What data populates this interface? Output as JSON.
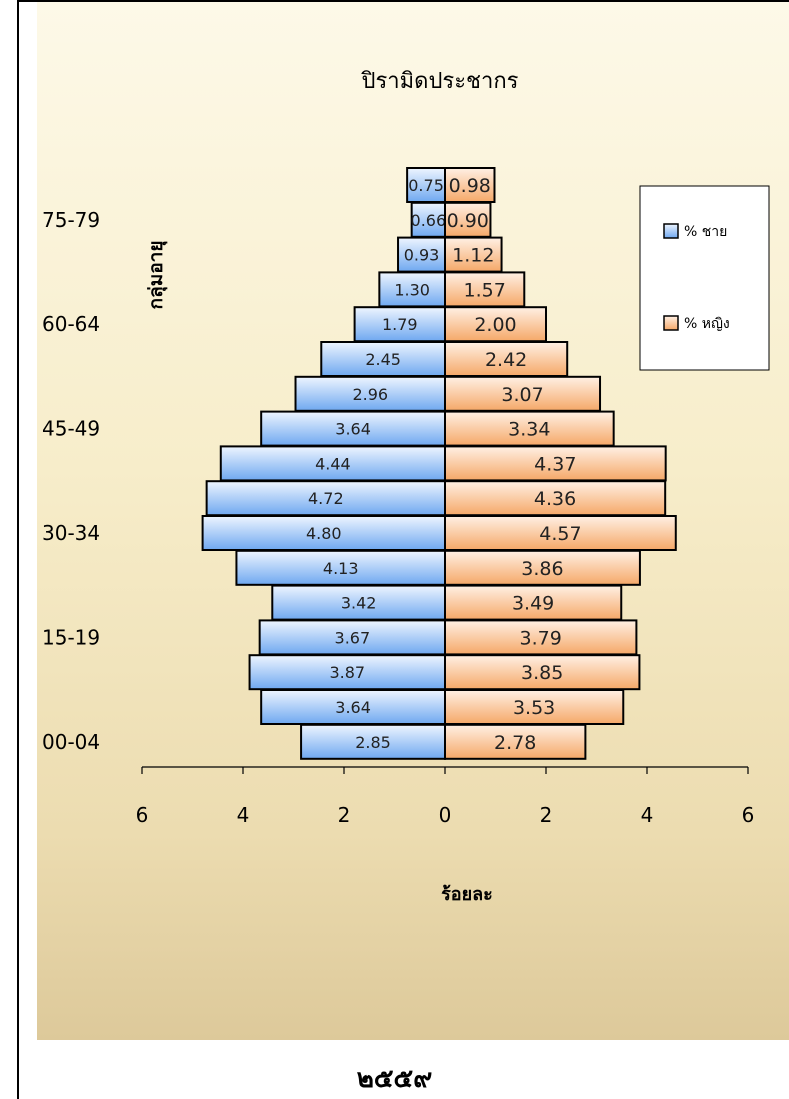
{
  "chart_data": {
    "type": "bar",
    "orientation": "horizontal",
    "title": "ปิรามิดประชากร",
    "xlabel": "ร้อยละ",
    "ylabel": "กลุ่มอายุ",
    "xlim": [
      -6,
      6
    ],
    "x_ticks": [
      "6",
      "4",
      "2",
      "0",
      "2",
      "4",
      "6"
    ],
    "y_tick_labels": [
      "00-04",
      "15-19",
      "30-34",
      "45-49",
      "60-64",
      "75-79"
    ],
    "y_tick_positions": [
      0,
      3,
      6,
      9,
      12,
      15
    ],
    "grid": false,
    "legend_position": "top-right",
    "series": [
      {
        "name": "% ชาย",
        "color": "#6fa8f0",
        "values": [
          2.85,
          3.64,
          3.87,
          3.67,
          3.42,
          4.13,
          4.8,
          4.72,
          4.44,
          3.64,
          2.96,
          2.45,
          1.79,
          1.3,
          0.93,
          0.66,
          0.75
        ],
        "labels": [
          "2.85",
          "3.64",
          "3.87",
          "3.67",
          "3.42",
          "4.13",
          "4.80",
          "4.72",
          "4.44",
          "3.64",
          "2.96",
          "2.45",
          "1.79",
          "1.30",
          "0.93",
          "0.66",
          "0.75"
        ]
      },
      {
        "name": "% หญิง",
        "color": "#f5a868",
        "values": [
          2.78,
          3.53,
          3.85,
          3.79,
          3.49,
          3.86,
          4.57,
          4.36,
          4.37,
          3.34,
          3.07,
          2.42,
          2.0,
          1.57,
          1.12,
          0.9,
          0.98
        ],
        "labels": [
          "2.78",
          "3.53",
          "3.85",
          "3.79",
          "3.49",
          "3.86",
          "4.57",
          "4.36",
          "4.37",
          "3.34",
          "3.07",
          "2.42",
          "2.00",
          "1.57",
          "1.12",
          "0.90",
          "0.98"
        ]
      }
    ]
  },
  "footer": {
    "year": "๒๕๕๙"
  }
}
